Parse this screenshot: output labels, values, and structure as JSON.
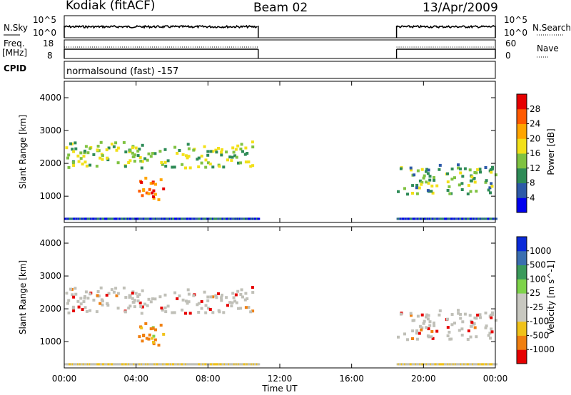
{
  "header": {
    "radar": "Kodiak (fitACF)",
    "beam": "Beam 02",
    "date": "13/Apr/2009"
  },
  "status_panels": {
    "nsky_label": "N.Sky",
    "nsearch_label": "N.Search",
    "noise_scale_top": "10^5",
    "noise_scale_bottom": "10^0",
    "freq_label_line1": "Freq.",
    "freq_label_line2": "[MHz]",
    "freq_ticks": [
      "18",
      "8"
    ],
    "nave_label": "Nave",
    "nave_ticks": [
      "60",
      "0"
    ],
    "cpid_label": "CPID",
    "cpid_value": "normalsound (fast) -157"
  },
  "chart_data": [
    {
      "type": "heatmap",
      "name": "Power",
      "ylabel": "Slant Range [km]",
      "xlabel": "Time UT",
      "x_range_hours": [
        0,
        24
      ],
      "ylim": [
        200,
        4500
      ],
      "yticks": [
        "1000",
        "2000",
        "3000",
        "4000"
      ],
      "colorbar_label": "Power [dB]",
      "colorbar_ticks": [
        "4",
        "8",
        "12",
        "16",
        "20",
        "24",
        "28"
      ],
      "colorbar_colors": [
        "#0000ee",
        "#2d5aa8",
        "#2e8b57",
        "#7fc241",
        "#f2e019",
        "#ffa500",
        "#ff5a00",
        "#e60000"
      ],
      "data_intervals_hours": [
        [
          0,
          10.8
        ],
        [
          18.5,
          24
        ]
      ],
      "features": [
        {
          "desc": "band",
          "t": [
            0,
            10.5
          ],
          "range_km": [
            1900,
            2700
          ],
          "power_db": 16
        },
        {
          "desc": "echo",
          "t": [
            4.0,
            5.5
          ],
          "range_km": [
            800,
            1600
          ],
          "power_db": 28
        },
        {
          "desc": "band",
          "t": [
            18.5,
            24
          ],
          "range_km": [
            1100,
            2000
          ],
          "power_db": 14
        }
      ]
    },
    {
      "type": "heatmap",
      "name": "Velocity",
      "ylabel": "Slant Range [km]",
      "xlabel": "Time UT",
      "x_range_hours": [
        0,
        24
      ],
      "ylim": [
        200,
        4500
      ],
      "yticks": [
        "1000",
        "2000",
        "3000",
        "4000"
      ],
      "colorbar_label": "Velocity [m s^-1]",
      "colorbar_ticks": [
        "1000",
        "500",
        "100",
        "25",
        "-25",
        "-100",
        "-500",
        "-1000"
      ],
      "colorbar_colors": [
        "#0a2ad8",
        "#3b6fb0",
        "#3b9a5b",
        "#7ed34a",
        "#c8c8c0",
        "#c8c8c0",
        "#f0c21a",
        "#f07f10",
        "#e60000"
      ],
      "data_intervals_hours": [
        [
          0,
          10.8
        ],
        [
          18.5,
          24
        ]
      ],
      "features": [
        {
          "desc": "ground-scatter band",
          "t": [
            0,
            10.5
          ],
          "range_km": [
            1900,
            2700
          ],
          "velocity": 0
        },
        {
          "desc": "negative velocity echo",
          "t": [
            4.0,
            5.5
          ],
          "range_km": [
            800,
            1600
          ],
          "velocity": -300
        },
        {
          "desc": "mixed scatter",
          "t": [
            18.5,
            24
          ],
          "range_km": [
            1100,
            2000
          ],
          "velocity": 0
        }
      ]
    }
  ],
  "x_axis": {
    "ticks": [
      "00:00",
      "04:00",
      "08:00",
      "12:00",
      "16:00",
      "20:00",
      "00:00"
    ],
    "title": "Time UT"
  },
  "colors": {
    "ground_scatter": "#c0c0b8"
  }
}
